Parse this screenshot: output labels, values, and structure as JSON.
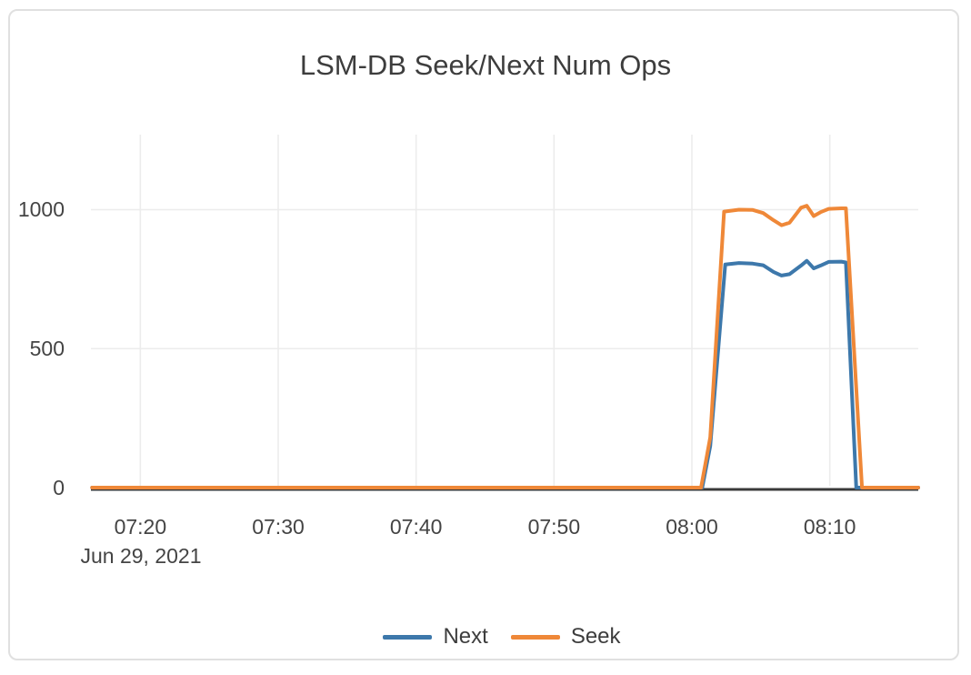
{
  "card": {
    "title": "LSM-DB Seek/Next Num Ops"
  },
  "colors": {
    "grid": "#ececec",
    "zeroline": "#3a3a3a",
    "tick_text": "#444444",
    "title_text": "#3d3d3d",
    "card_border": "#e0e0e0",
    "series_next": "#3d78ab",
    "series_seek": "#ef8838"
  },
  "chart_data": {
    "type": "line",
    "title": "LSM-DB Seek/Next Num Ops",
    "xlabel": "",
    "ylabel": "",
    "grid": true,
    "legend_position": "bottom-center",
    "x_axis": {
      "date": "Jun 29, 2021",
      "ticks": [
        "07:20",
        "07:30",
        "07:40",
        "07:50",
        "08:00",
        "08:10"
      ],
      "range": [
        "07:16:25",
        "08:16:25"
      ]
    },
    "y_axis": {
      "ticks": [
        "0",
        "500",
        "1000"
      ],
      "tick_values": [
        0,
        500,
        1000
      ],
      "range": [
        0,
        1270
      ]
    },
    "series": [
      {
        "name": "Next",
        "color": "#3d78ab",
        "points": [
          [
            "07:16:30",
            0
          ],
          [
            "07:20:00",
            0
          ],
          [
            "07:25:00",
            0
          ],
          [
            "07:30:00",
            0
          ],
          [
            "07:35:00",
            0
          ],
          [
            "07:40:00",
            0
          ],
          [
            "07:45:00",
            0
          ],
          [
            "07:50:00",
            0
          ],
          [
            "07:55:00",
            0
          ],
          [
            "08:00:00",
            0
          ],
          [
            "08:00:45",
            0
          ],
          [
            "08:01:20",
            150
          ],
          [
            "08:02:25",
            803
          ],
          [
            "08:03:25",
            808
          ],
          [
            "08:04:25",
            806
          ],
          [
            "08:05:10",
            800
          ],
          [
            "08:05:55",
            776
          ],
          [
            "08:06:30",
            763
          ],
          [
            "08:07:05",
            768
          ],
          [
            "08:07:55",
            799
          ],
          [
            "08:08:20",
            816
          ],
          [
            "08:08:50",
            789
          ],
          [
            "08:09:20",
            799
          ],
          [
            "08:09:55",
            812
          ],
          [
            "08:10:50",
            813
          ],
          [
            "08:11:10",
            810
          ],
          [
            "08:11:55",
            0
          ],
          [
            "08:13:00",
            0
          ],
          [
            "08:14:00",
            0
          ],
          [
            "08:15:00",
            0
          ],
          [
            "08:16:25",
            0
          ]
        ]
      },
      {
        "name": "Seek",
        "color": "#ef8838",
        "points": [
          [
            "07:16:30",
            0
          ],
          [
            "07:20:00",
            0
          ],
          [
            "07:25:00",
            0
          ],
          [
            "07:30:00",
            0
          ],
          [
            "07:35:00",
            0
          ],
          [
            "07:40:00",
            0
          ],
          [
            "07:45:00",
            0
          ],
          [
            "07:50:00",
            0
          ],
          [
            "07:55:00",
            0
          ],
          [
            "08:00:00",
            0
          ],
          [
            "08:00:40",
            0
          ],
          [
            "08:01:20",
            181
          ],
          [
            "08:02:20",
            993
          ],
          [
            "08:03:25",
            1000
          ],
          [
            "08:04:25",
            999
          ],
          [
            "08:05:10",
            988
          ],
          [
            "08:05:55",
            962
          ],
          [
            "08:06:30",
            944
          ],
          [
            "08:07:05",
            953
          ],
          [
            "08:07:55",
            1007
          ],
          [
            "08:08:20",
            1014
          ],
          [
            "08:08:50",
            977
          ],
          [
            "08:09:20",
            991
          ],
          [
            "08:09:55",
            1003
          ],
          [
            "08:10:50",
            1005
          ],
          [
            "08:11:10",
            1005
          ],
          [
            "08:12:20",
            0
          ],
          [
            "08:13:00",
            0
          ],
          [
            "08:14:00",
            0
          ],
          [
            "08:15:00",
            0
          ],
          [
            "08:16:25",
            0
          ]
        ]
      }
    ]
  }
}
